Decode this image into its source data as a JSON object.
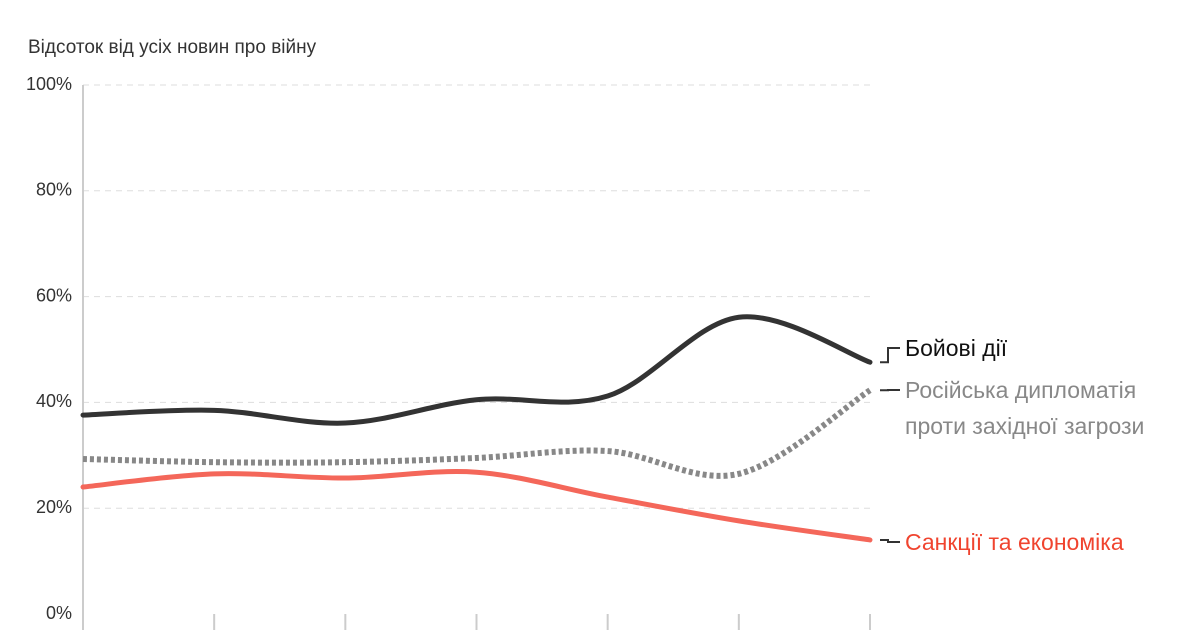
{
  "chart_data": {
    "type": "line",
    "y_title": "Відсоток від усіх новин про війну",
    "categories": [
      null,
      null,
      null,
      null,
      null,
      null,
      null
    ],
    "series": [
      {
        "name": "Бойові дії",
        "color": "#333333",
        "dash": false,
        "values": [
          37.6,
          38.5,
          36.1,
          40.5,
          41.2,
          56.1,
          47.6
        ]
      },
      {
        "name": "Російська дипломатія проти західної загрози",
        "color": "#888888",
        "dash": true,
        "values": [
          29.3,
          28.7,
          28.7,
          29.5,
          30.8,
          26.5,
          42.3
        ]
      },
      {
        "name": "Санкції та економіка",
        "color": "#f4675a",
        "dash": false,
        "values": [
          24.0,
          26.5,
          25.7,
          26.8,
          22.1,
          17.6,
          14.0
        ]
      }
    ],
    "ylim": [
      0,
      100
    ],
    "yticks": [
      {
        "value": 0,
        "label": "0%"
      },
      {
        "value": 20,
        "label": "20%"
      },
      {
        "value": 40,
        "label": "40%"
      },
      {
        "value": 60,
        "label": "60%"
      },
      {
        "value": 80,
        "label": "80%"
      },
      {
        "value": 100,
        "label": "100%"
      }
    ],
    "grid": true
  }
}
